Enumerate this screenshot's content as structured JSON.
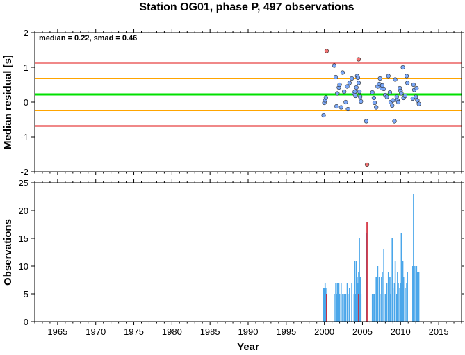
{
  "chart_data": [
    {
      "type": "scatter",
      "title": "Station OG01, phase P, 497 observations",
      "annotation": "median = 0.22, smad = 0.46",
      "xlabel": "",
      "ylabel": "Median residual [s]",
      "xlim": [
        1962,
        2018
      ],
      "ylim": [
        -2,
        2
      ],
      "x_ticks": [
        1965,
        1970,
        1975,
        1980,
        1985,
        1990,
        1995,
        2000,
        2005,
        2010,
        2015
      ],
      "y_ticks": [
        -2,
        -1,
        0,
        1,
        2
      ],
      "hlines": [
        {
          "y": 1.13,
          "color": "#e01010"
        },
        {
          "y": 0.68,
          "color": "#ffa500"
        },
        {
          "y": 0.22,
          "color": "#00e000"
        },
        {
          "y": -0.24,
          "color": "#ffa500"
        },
        {
          "y": -0.69,
          "color": "#e01010"
        }
      ],
      "series": [
        {
          "color": "#7aa7f7",
          "points": [
            [
              1999.9,
              -0.38
            ],
            [
              2000.0,
              -0.02
            ],
            [
              2000.1,
              0.05
            ],
            [
              2000.2,
              0.13
            ],
            [
              2001.3,
              1.05
            ],
            [
              2001.5,
              0.72
            ],
            [
              2001.6,
              -0.12
            ],
            [
              2001.7,
              0.25
            ],
            [
              2001.9,
              0.42
            ],
            [
              2002.0,
              0.5
            ],
            [
              2002.2,
              -0.15
            ],
            [
              2002.4,
              0.85
            ],
            [
              2002.6,
              0.3
            ],
            [
              2002.8,
              0.0
            ],
            [
              2003.0,
              0.45
            ],
            [
              2003.1,
              -0.2
            ],
            [
              2003.3,
              0.55
            ],
            [
              2003.6,
              0.68
            ],
            [
              2003.9,
              0.25
            ],
            [
              2004.0,
              0.3
            ],
            [
              2004.1,
              0.18
            ],
            [
              2004.2,
              0.42
            ],
            [
              2004.3,
              0.75
            ],
            [
              2004.4,
              0.7
            ],
            [
              2004.5,
              0.55
            ],
            [
              2004.6,
              0.3
            ],
            [
              2004.7,
              0.15
            ],
            [
              2004.8,
              0.02
            ],
            [
              2005.5,
              -0.55
            ],
            [
              2006.3,
              0.28
            ],
            [
              2006.5,
              0.12
            ],
            [
              2006.6,
              -0.02
            ],
            [
              2006.8,
              -0.15
            ],
            [
              2007.0,
              0.45
            ],
            [
              2007.2,
              0.52
            ],
            [
              2007.3,
              0.68
            ],
            [
              2007.5,
              0.4
            ],
            [
              2007.6,
              0.48
            ],
            [
              2007.8,
              0.38
            ],
            [
              2008.0,
              0.2
            ],
            [
              2008.2,
              0.15
            ],
            [
              2008.4,
              0.75
            ],
            [
              2008.6,
              0.28
            ],
            [
              2008.7,
              0.0
            ],
            [
              2008.9,
              -0.1
            ],
            [
              2009.0,
              0.05
            ],
            [
              2009.2,
              -0.55
            ],
            [
              2009.3,
              0.65
            ],
            [
              2009.5,
              0.15
            ],
            [
              2009.6,
              0.05
            ],
            [
              2009.7,
              0.0
            ],
            [
              2009.9,
              0.4
            ],
            [
              2010.0,
              0.32
            ],
            [
              2010.1,
              0.25
            ],
            [
              2010.3,
              1.0
            ],
            [
              2010.4,
              0.12
            ],
            [
              2010.6,
              0.18
            ],
            [
              2010.8,
              0.75
            ],
            [
              2010.9,
              0.55
            ],
            [
              2011.6,
              0.1
            ],
            [
              2011.7,
              0.5
            ],
            [
              2011.8,
              0.35
            ],
            [
              2012.0,
              0.15
            ],
            [
              2012.1,
              0.4
            ],
            [
              2012.2,
              0.05
            ],
            [
              2012.4,
              -0.05
            ]
          ]
        },
        {
          "color": "#f07070",
          "points": [
            [
              2000.3,
              1.47
            ],
            [
              2004.5,
              1.23
            ],
            [
              2005.6,
              -1.8
            ]
          ]
        }
      ]
    },
    {
      "type": "bar",
      "title": "",
      "xlabel": "Year",
      "ylabel": "Observations",
      "xlim": [
        1962,
        2018
      ],
      "ylim": [
        0,
        25
      ],
      "x_ticks": [
        1965,
        1970,
        1975,
        1980,
        1985,
        1990,
        1995,
        2000,
        2005,
        2010,
        2015
      ],
      "y_ticks": [
        0,
        5,
        10,
        15,
        20,
        25
      ],
      "series": [
        {
          "color": "#4aa6ea",
          "bars": [
            [
              1999.9,
              6
            ],
            [
              2000.0,
              6
            ],
            [
              2000.1,
              7
            ],
            [
              2000.2,
              6
            ],
            [
              2001.3,
              5
            ],
            [
              2001.5,
              7
            ],
            [
              2001.6,
              5
            ],
            [
              2001.7,
              7
            ],
            [
              2001.9,
              7
            ],
            [
              2002.0,
              5
            ],
            [
              2002.2,
              7
            ],
            [
              2002.4,
              5
            ],
            [
              2002.6,
              5
            ],
            [
              2002.8,
              5
            ],
            [
              2003.0,
              7
            ],
            [
              2003.1,
              5
            ],
            [
              2003.3,
              6
            ],
            [
              2003.6,
              7
            ],
            [
              2003.9,
              5
            ],
            [
              2004.0,
              11
            ],
            [
              2004.1,
              5
            ],
            [
              2004.2,
              11
            ],
            [
              2004.3,
              8
            ],
            [
              2004.4,
              7
            ],
            [
              2004.5,
              9
            ],
            [
              2004.6,
              15
            ],
            [
              2004.7,
              8
            ],
            [
              2004.8,
              5
            ],
            [
              2005.5,
              16
            ],
            [
              2006.3,
              5
            ],
            [
              2006.5,
              5
            ],
            [
              2006.6,
              5
            ],
            [
              2006.8,
              8
            ],
            [
              2007.0,
              10
            ],
            [
              2007.2,
              8
            ],
            [
              2007.3,
              5
            ],
            [
              2007.5,
              8
            ],
            [
              2007.6,
              9
            ],
            [
              2007.8,
              13
            ],
            [
              2008.0,
              5
            ],
            [
              2008.2,
              7
            ],
            [
              2008.4,
              9
            ],
            [
              2008.6,
              8
            ],
            [
              2008.7,
              5
            ],
            [
              2008.9,
              15
            ],
            [
              2009.0,
              6
            ],
            [
              2009.2,
              7
            ],
            [
              2009.3,
              11
            ],
            [
              2009.5,
              5
            ],
            [
              2009.6,
              9
            ],
            [
              2009.7,
              7
            ],
            [
              2009.9,
              6
            ],
            [
              2010.0,
              7
            ],
            [
              2010.1,
              16
            ],
            [
              2010.3,
              11
            ],
            [
              2010.4,
              8
            ],
            [
              2010.6,
              6
            ],
            [
              2010.8,
              7
            ],
            [
              2010.9,
              9
            ],
            [
              2011.6,
              10
            ],
            [
              2011.7,
              23
            ],
            [
              2011.8,
              10
            ],
            [
              2012.0,
              10
            ],
            [
              2012.1,
              10
            ],
            [
              2012.2,
              9
            ],
            [
              2012.4,
              9
            ]
          ]
        },
        {
          "color": "#d02030",
          "bars": [
            [
              2000.3,
              5
            ],
            [
              2004.5,
              5
            ],
            [
              2005.6,
              18
            ]
          ]
        }
      ]
    }
  ]
}
